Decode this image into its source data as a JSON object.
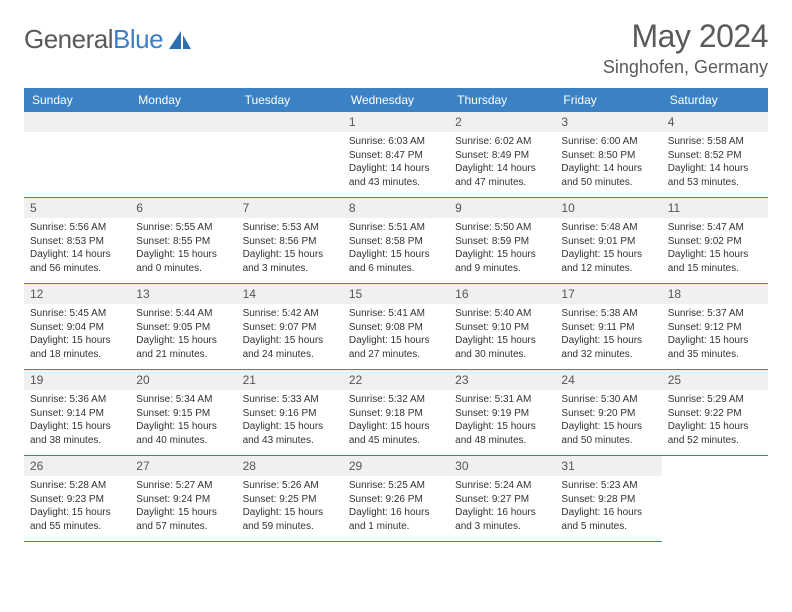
{
  "logo": {
    "text1": "General",
    "text2": "Blue"
  },
  "title": "May 2024",
  "location": "Singhofen, Germany",
  "header_color": "#3b82c4",
  "daynum_bg": "#eef0f2",
  "border_color": "#3b82c4",
  "text_color": "#333333",
  "weekdays": [
    "Sunday",
    "Monday",
    "Tuesday",
    "Wednesday",
    "Thursday",
    "Friday",
    "Saturday"
  ],
  "leading_blanks": 3,
  "days": [
    {
      "n": "1",
      "sunrise": "6:03 AM",
      "sunset": "8:47 PM",
      "daylight": "14 hours and 43 minutes."
    },
    {
      "n": "2",
      "sunrise": "6:02 AM",
      "sunset": "8:49 PM",
      "daylight": "14 hours and 47 minutes."
    },
    {
      "n": "3",
      "sunrise": "6:00 AM",
      "sunset": "8:50 PM",
      "daylight": "14 hours and 50 minutes."
    },
    {
      "n": "4",
      "sunrise": "5:58 AM",
      "sunset": "8:52 PM",
      "daylight": "14 hours and 53 minutes."
    },
    {
      "n": "5",
      "sunrise": "5:56 AM",
      "sunset": "8:53 PM",
      "daylight": "14 hours and 56 minutes."
    },
    {
      "n": "6",
      "sunrise": "5:55 AM",
      "sunset": "8:55 PM",
      "daylight": "15 hours and 0 minutes."
    },
    {
      "n": "7",
      "sunrise": "5:53 AM",
      "sunset": "8:56 PM",
      "daylight": "15 hours and 3 minutes."
    },
    {
      "n": "8",
      "sunrise": "5:51 AM",
      "sunset": "8:58 PM",
      "daylight": "15 hours and 6 minutes."
    },
    {
      "n": "9",
      "sunrise": "5:50 AM",
      "sunset": "8:59 PM",
      "daylight": "15 hours and 9 minutes."
    },
    {
      "n": "10",
      "sunrise": "5:48 AM",
      "sunset": "9:01 PM",
      "daylight": "15 hours and 12 minutes."
    },
    {
      "n": "11",
      "sunrise": "5:47 AM",
      "sunset": "9:02 PM",
      "daylight": "15 hours and 15 minutes."
    },
    {
      "n": "12",
      "sunrise": "5:45 AM",
      "sunset": "9:04 PM",
      "daylight": "15 hours and 18 minutes."
    },
    {
      "n": "13",
      "sunrise": "5:44 AM",
      "sunset": "9:05 PM",
      "daylight": "15 hours and 21 minutes."
    },
    {
      "n": "14",
      "sunrise": "5:42 AM",
      "sunset": "9:07 PM",
      "daylight": "15 hours and 24 minutes."
    },
    {
      "n": "15",
      "sunrise": "5:41 AM",
      "sunset": "9:08 PM",
      "daylight": "15 hours and 27 minutes."
    },
    {
      "n": "16",
      "sunrise": "5:40 AM",
      "sunset": "9:10 PM",
      "daylight": "15 hours and 30 minutes."
    },
    {
      "n": "17",
      "sunrise": "5:38 AM",
      "sunset": "9:11 PM",
      "daylight": "15 hours and 32 minutes."
    },
    {
      "n": "18",
      "sunrise": "5:37 AM",
      "sunset": "9:12 PM",
      "daylight": "15 hours and 35 minutes."
    },
    {
      "n": "19",
      "sunrise": "5:36 AM",
      "sunset": "9:14 PM",
      "daylight": "15 hours and 38 minutes."
    },
    {
      "n": "20",
      "sunrise": "5:34 AM",
      "sunset": "9:15 PM",
      "daylight": "15 hours and 40 minutes."
    },
    {
      "n": "21",
      "sunrise": "5:33 AM",
      "sunset": "9:16 PM",
      "daylight": "15 hours and 43 minutes."
    },
    {
      "n": "22",
      "sunrise": "5:32 AM",
      "sunset": "9:18 PM",
      "daylight": "15 hours and 45 minutes."
    },
    {
      "n": "23",
      "sunrise": "5:31 AM",
      "sunset": "9:19 PM",
      "daylight": "15 hours and 48 minutes."
    },
    {
      "n": "24",
      "sunrise": "5:30 AM",
      "sunset": "9:20 PM",
      "daylight": "15 hours and 50 minutes."
    },
    {
      "n": "25",
      "sunrise": "5:29 AM",
      "sunset": "9:22 PM",
      "daylight": "15 hours and 52 minutes."
    },
    {
      "n": "26",
      "sunrise": "5:28 AM",
      "sunset": "9:23 PM",
      "daylight": "15 hours and 55 minutes."
    },
    {
      "n": "27",
      "sunrise": "5:27 AM",
      "sunset": "9:24 PM",
      "daylight": "15 hours and 57 minutes."
    },
    {
      "n": "28",
      "sunrise": "5:26 AM",
      "sunset": "9:25 PM",
      "daylight": "15 hours and 59 minutes."
    },
    {
      "n": "29",
      "sunrise": "5:25 AM",
      "sunset": "9:26 PM",
      "daylight": "16 hours and 1 minute."
    },
    {
      "n": "30",
      "sunrise": "5:24 AM",
      "sunset": "9:27 PM",
      "daylight": "16 hours and 3 minutes."
    },
    {
      "n": "31",
      "sunrise": "5:23 AM",
      "sunset": "9:28 PM",
      "daylight": "16 hours and 5 minutes."
    }
  ],
  "labels": {
    "sunrise": "Sunrise:",
    "sunset": "Sunset:",
    "daylight": "Daylight:"
  }
}
